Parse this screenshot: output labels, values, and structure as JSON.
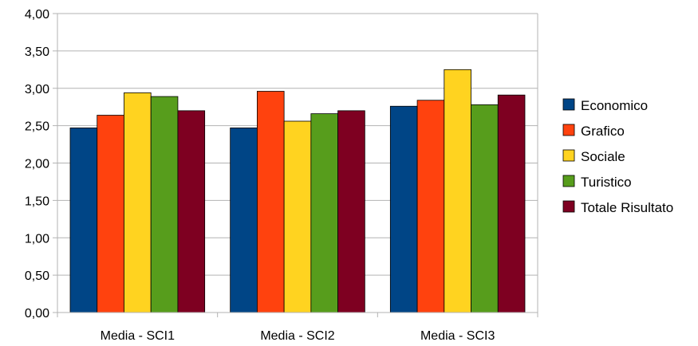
{
  "chart_data": {
    "type": "bar",
    "title": "",
    "xlabel": "",
    "ylabel": "",
    "categories": [
      "Media - SCI1",
      "Media - SCI2",
      "Media - SCI3"
    ],
    "series": [
      {
        "name": "Economico",
        "color": "#004586",
        "values": [
          2.47,
          2.47,
          2.76
        ]
      },
      {
        "name": "Grafico",
        "color": "#ff420e",
        "values": [
          2.64,
          2.96,
          2.84
        ]
      },
      {
        "name": "Sociale",
        "color": "#ffd320",
        "values": [
          2.94,
          2.56,
          3.25
        ]
      },
      {
        "name": "Turistico",
        "color": "#579d1c",
        "values": [
          2.89,
          2.66,
          2.78
        ]
      },
      {
        "name": "Totale Risultato",
        "color": "#7e0021",
        "values": [
          2.7,
          2.7,
          2.91
        ]
      }
    ],
    "ylim": [
      0,
      4
    ],
    "yticks": [
      "0,00",
      "0,50",
      "1,00",
      "1,50",
      "2,00",
      "2,50",
      "3,00",
      "3,50",
      "4,00"
    ],
    "grid": true,
    "legend_position": "right"
  }
}
